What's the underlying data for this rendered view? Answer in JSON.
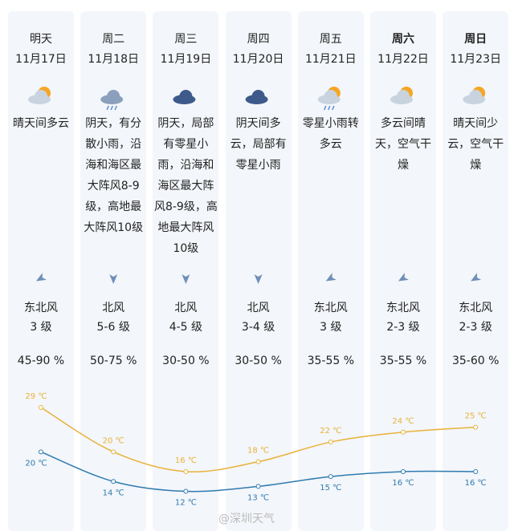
{
  "days": [
    {
      "day": "明天",
      "date": "11月17日",
      "weather": "晴天间多云",
      "wind_direction": "东北风",
      "wind_level": "3 级",
      "humidity": "45-90 %"
    },
    {
      "day": "周二",
      "date": "11月18日",
      "weather": "阴天，有分散小雨，沿海和海区最大阵风8-9级，高地最大阵风10级",
      "wind_direction": "北风",
      "wind_level": "5-6 级",
      "humidity": "50-75 %"
    },
    {
      "day": "周三",
      "date": "11月19日",
      "weather": "阴天，局部有零星小雨，沿海和海区最大阵风8-9级，高地最大阵风10级",
      "wind_direction": "北风",
      "wind_level": "4-5 级",
      "humidity": "30-50 %"
    },
    {
      "day": "周四",
      "date": "11月20日",
      "weather": "阴天间多云，局部有零星小雨",
      "wind_direction": "北风",
      "wind_level": "3-4 级",
      "humidity": "30-50 %"
    },
    {
      "day": "周五",
      "date": "11月21日",
      "weather": "零星小雨转多云",
      "wind_direction": "东北风",
      "wind_level": "3 级",
      "humidity": "35-55 %"
    },
    {
      "day": "周六",
      "date": "11月22日",
      "weather": "多云间晴天，空气干燥",
      "wind_direction": "东北风",
      "wind_level": "2-3 级",
      "humidity": "35-55 %"
    },
    {
      "day": "周日",
      "date": "11月23日",
      "weather": "晴天间少云，空气干燥",
      "wind_direction": "东北风",
      "wind_level": "2-3 级",
      "humidity": "35-60 %"
    }
  ],
  "temperature": {
    "high": {
      "color": "#e8b23a",
      "values": [
        29,
        20,
        16,
        18,
        22,
        24,
        25
      ],
      "value_labels": [
        "29 ℃",
        "20 ℃",
        "16 ℃",
        "18 ℃",
        "22 ℃",
        "24 ℃",
        "25 ℃"
      ]
    },
    "low": {
      "color": "#2f7bb0",
      "values": [
        20,
        14,
        12,
        13,
        15,
        16,
        16
      ],
      "value_labels": [
        "20 ℃",
        "14 ℃",
        "12 ℃",
        "13 ℃",
        "15 ℃",
        "16 ℃",
        "16 ℃"
      ]
    }
  },
  "watermark": "@深圳天气"
}
